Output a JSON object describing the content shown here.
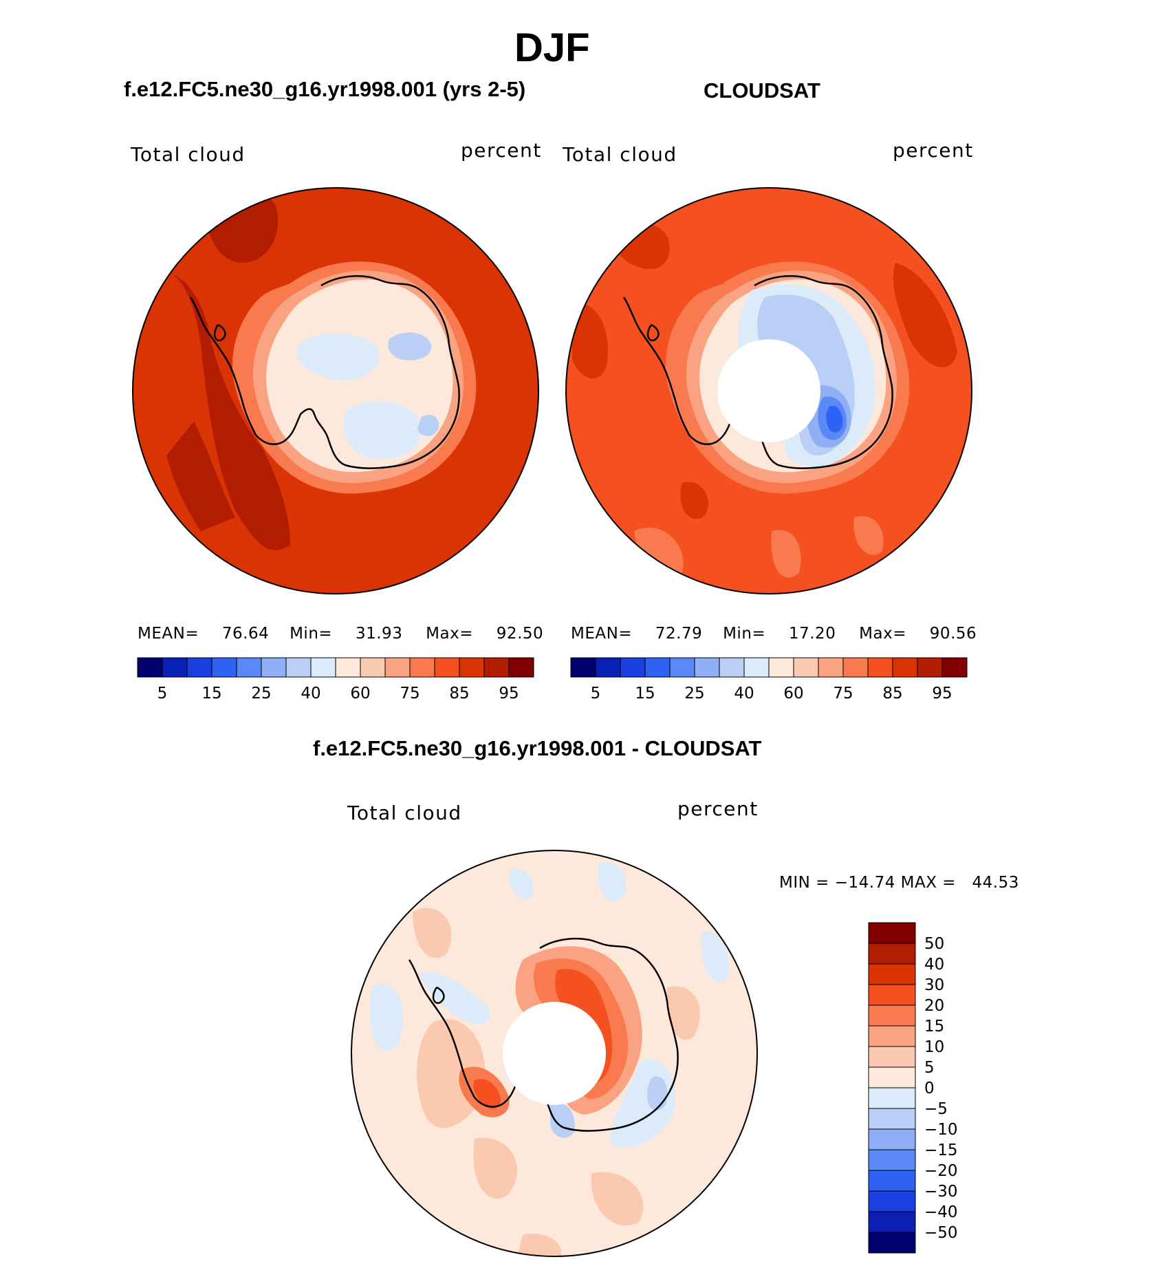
{
  "figure": {
    "season": "DJF"
  },
  "panels": [
    {
      "title": "f.e12.FC5.ne30_g16.yr1998.001 (yrs 2-5)",
      "variable": "Total cloud",
      "units": "percent",
      "stats": {
        "mean_label": "MEAN=",
        "mean": "76.64",
        "min_label": "Min=",
        "min": "31.93",
        "max_label": "Max=",
        "max": "92.50"
      }
    },
    {
      "title": "CLOUDSAT",
      "variable": "Total cloud",
      "units": "percent",
      "stats": {
        "mean_label": "MEAN=",
        "mean": "72.79",
        "min_label": "Min=",
        "min": "17.20",
        "max_label": "Max=",
        "max": "90.56"
      }
    },
    {
      "title": "f.e12.FC5.ne30_g16.yr1998.001 - CLOUDSAT",
      "variable": "Total cloud",
      "units": "percent",
      "stats": {
        "minmax": "MIN = −14.74 MAX =   44.53"
      }
    }
  ],
  "colorbar_abs": {
    "colors": [
      "#00006e",
      "#0a1fb4",
      "#1a3ee0",
      "#2e62f5",
      "#5a88f7",
      "#8fb0f6",
      "#b9cff5",
      "#dcebfa",
      "#fde9dc",
      "#fbc9b0",
      "#f9a383",
      "#f97a4e",
      "#f45020",
      "#da3405",
      "#b21d02",
      "#820000"
    ],
    "tick_labels": [
      "5",
      "15",
      "25",
      "40",
      "60",
      "75",
      "85",
      "95"
    ]
  },
  "colorbar_diff": {
    "colors": [
      "#00006e",
      "#0a1fb4",
      "#1a3ee0",
      "#2e62f5",
      "#5a88f7",
      "#8fb0f6",
      "#b9cff5",
      "#dcebfa",
      "#fde9dc",
      "#fbc9b0",
      "#f9a383",
      "#f97a4e",
      "#f45020",
      "#da3405",
      "#b21d02",
      "#820000"
    ],
    "tick_labels": [
      "50",
      "40",
      "30",
      "20",
      "15",
      "10",
      "5",
      "0",
      "−5",
      "−10",
      "−15",
      "−20",
      "−30",
      "−40",
      "−50"
    ]
  },
  "map_colors": {
    "ocean_high": "#da3405",
    "ocean_darker": "#b21d02",
    "ocean_obs": "#f45020",
    "ocean_light": "#f97a4e",
    "coast_band": "#f9a383",
    "interior_60": "#fde9dc",
    "interior_40": "#dcebfa",
    "blue_35": "#b9cff5",
    "blue_25": "#8fb0f6",
    "blue_15": "#5a88f7",
    "blue_10": "#2e62f5",
    "diff_bg": "#fde9dc",
    "diff_5_10": "#fbc9b0",
    "diff_10_15": "#f9a383",
    "diff_20_30": "#f45020",
    "diff_30_40": "#da3405",
    "diff_neg5": "#dcebfa",
    "diff_neg10": "#b9cff5",
    "coastline": "#000000"
  }
}
